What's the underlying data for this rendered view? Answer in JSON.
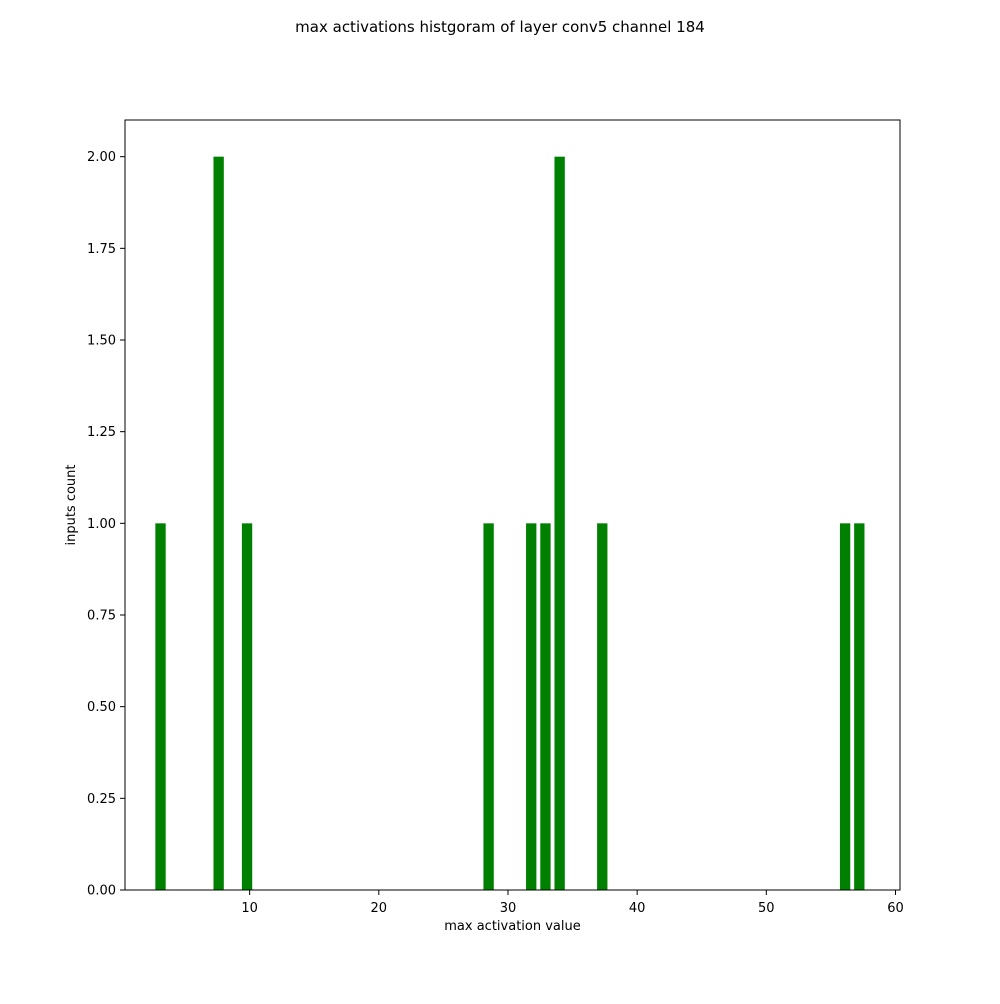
{
  "chart_data": {
    "type": "bar",
    "title": "max activations histgoram of layer conv5 channel 184",
    "xlabel": "max activation value",
    "ylabel": "inputs count",
    "x": [
      3.1,
      7.6,
      9.8,
      28.5,
      31.8,
      32.9,
      34.0,
      37.3,
      56.1,
      57.2
    ],
    "values": [
      1,
      2,
      1,
      1,
      1,
      1,
      2,
      1,
      1,
      1
    ],
    "bar_width": 0.8,
    "bar_color": "#008000",
    "xlim": [
      0.35,
      60.35
    ],
    "ylim": [
      0,
      2.1
    ],
    "xticks": [
      10,
      20,
      30,
      40,
      50,
      60
    ],
    "xtick_labels": [
      "10",
      "20",
      "30",
      "40",
      "50",
      "60"
    ],
    "yticks": [
      0,
      0.25,
      0.5,
      0.75,
      1.0,
      1.25,
      1.5,
      1.75,
      2.0
    ],
    "ytick_labels": [
      "0.00",
      "0.25",
      "0.50",
      "0.75",
      "1.00",
      "1.25",
      "1.50",
      "1.75",
      "2.00"
    ],
    "grid": false,
    "legend": "none"
  }
}
